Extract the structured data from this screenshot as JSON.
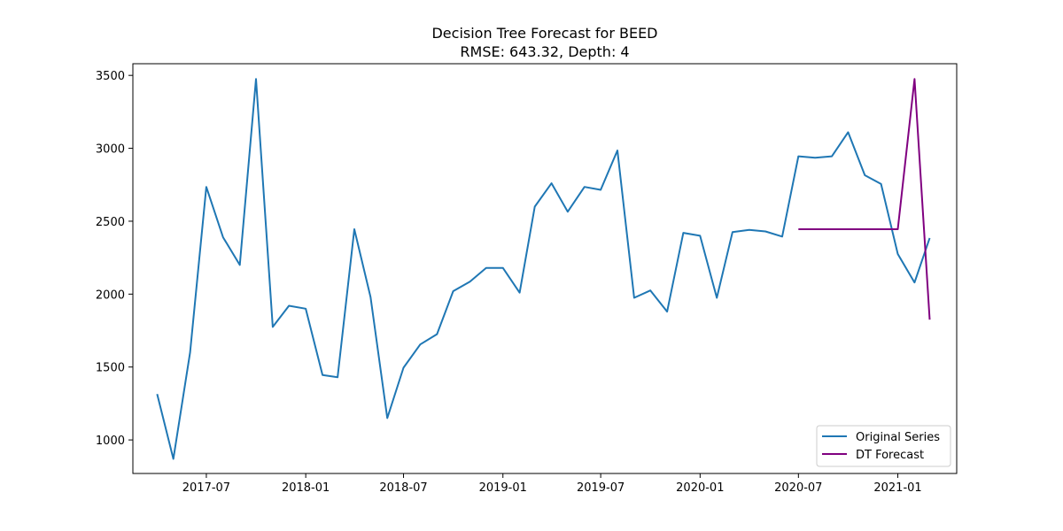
{
  "chart_data": {
    "type": "line",
    "title": "Decision Tree Forecast for BEED",
    "subtitle": "RMSE: 643.32, Depth: 4",
    "xlabel": "",
    "ylabel": "",
    "xlim": [
      "2017-02-15",
      "2021-04-20"
    ],
    "ylim": [
      770,
      3580
    ],
    "x_ticks": [
      "2017-07",
      "2018-01",
      "2018-07",
      "2019-01",
      "2019-07",
      "2020-01",
      "2020-07",
      "2021-01"
    ],
    "y_ticks": [
      1000,
      1500,
      2000,
      2500,
      3000,
      3500
    ],
    "grid": false,
    "legend_position": "lower right",
    "series": [
      {
        "name": "Original Series",
        "color": "#1f77b4",
        "x": [
          "2017-04-01",
          "2017-05-01",
          "2017-06-01",
          "2017-07-01",
          "2017-08-01",
          "2017-09-01",
          "2017-10-01",
          "2017-11-01",
          "2017-12-01",
          "2018-01-01",
          "2018-02-01",
          "2018-03-01",
          "2018-04-01",
          "2018-05-01",
          "2018-06-01",
          "2018-07-01",
          "2018-08-01",
          "2018-09-01",
          "2018-10-01",
          "2018-11-01",
          "2018-12-01",
          "2019-01-01",
          "2019-02-01",
          "2019-03-01",
          "2019-04-01",
          "2019-05-01",
          "2019-06-01",
          "2019-07-01",
          "2019-08-01",
          "2019-09-01",
          "2019-10-01",
          "2019-11-01",
          "2019-12-01",
          "2020-01-01",
          "2020-02-01",
          "2020-03-01",
          "2020-04-01",
          "2020-05-01",
          "2020-06-01",
          "2020-07-01",
          "2020-08-01",
          "2020-09-01",
          "2020-10-01",
          "2020-11-01",
          "2020-12-01",
          "2021-01-01",
          "2021-02-01",
          "2021-03-01"
        ],
        "values": [
          1315,
          870,
          1600,
          2735,
          2390,
          2200,
          3475,
          1775,
          1920,
          1900,
          1445,
          1430,
          2445,
          1980,
          1150,
          1495,
          1655,
          1725,
          2020,
          2085,
          2180,
          2180,
          2010,
          2600,
          2760,
          2565,
          2735,
          2715,
          2985,
          1975,
          2025,
          1880,
          2420,
          2400,
          1975,
          2425,
          2440,
          2430,
          2395,
          2945,
          2935,
          2945,
          3110,
          2815,
          2755,
          2275,
          2080,
          2385
        ]
      },
      {
        "name": "DT Forecast",
        "color": "#800080",
        "x": [
          "2020-07-01",
          "2020-08-01",
          "2020-09-01",
          "2020-10-01",
          "2020-11-01",
          "2020-12-01",
          "2021-01-01",
          "2021-02-01",
          "2021-03-01"
        ],
        "values": [
          2445,
          2445,
          2445,
          2445,
          2445,
          2445,
          2445,
          3475,
          1825
        ]
      }
    ]
  }
}
